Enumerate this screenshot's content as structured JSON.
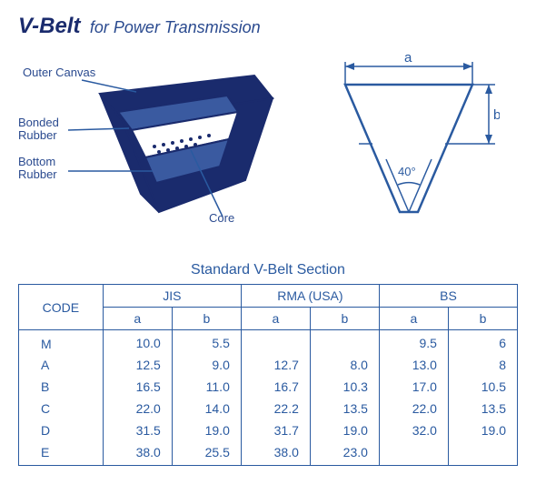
{
  "title": {
    "main": "V-Belt",
    "sub": "for Power Transmission"
  },
  "belt_labels": {
    "outer_canvas": "Outer Canvas",
    "bonded_rubber_l1": "Bonded",
    "bonded_rubber_l2": "Rubber",
    "bottom_rubber_l1": "Bottom",
    "bottom_rubber_l2": "Rubber",
    "core": "Core"
  },
  "profile": {
    "dim_a": "a",
    "dim_b": "b",
    "angle": "40°",
    "stroke": "#2a5aa0",
    "fill": "#ffffff"
  },
  "table": {
    "title": "Standard V-Belt Section",
    "header_code": "CODE",
    "groups": [
      "JIS",
      "RMA (USA)",
      "BS"
    ],
    "sub": [
      "a",
      "b"
    ],
    "rows": [
      {
        "code": "M",
        "jis_a": "10.0",
        "jis_b": "5.5",
        "rma_a": "",
        "rma_b": "",
        "bs_a": "9.5",
        "bs_b": "6"
      },
      {
        "code": "A",
        "jis_a": "12.5",
        "jis_b": "9.0",
        "rma_a": "12.7",
        "rma_b": "8.0",
        "bs_a": "13.0",
        "bs_b": "8"
      },
      {
        "code": "B",
        "jis_a": "16.5",
        "jis_b": "11.0",
        "rma_a": "16.7",
        "rma_b": "10.3",
        "bs_a": "17.0",
        "bs_b": "10.5"
      },
      {
        "code": "C",
        "jis_a": "22.0",
        "jis_b": "14.0",
        "rma_a": "22.2",
        "rma_b": "13.5",
        "bs_a": "22.0",
        "bs_b": "13.5"
      },
      {
        "code": "D",
        "jis_a": "31.5",
        "jis_b": "19.0",
        "rma_a": "31.7",
        "rma_b": "19.0",
        "bs_a": "32.0",
        "bs_b": "19.0"
      },
      {
        "code": "E",
        "jis_a": "38.0",
        "jis_b": "25.5",
        "rma_a": "38.0",
        "rma_b": "23.0",
        "bs_a": "",
        "bs_b": ""
      }
    ]
  }
}
